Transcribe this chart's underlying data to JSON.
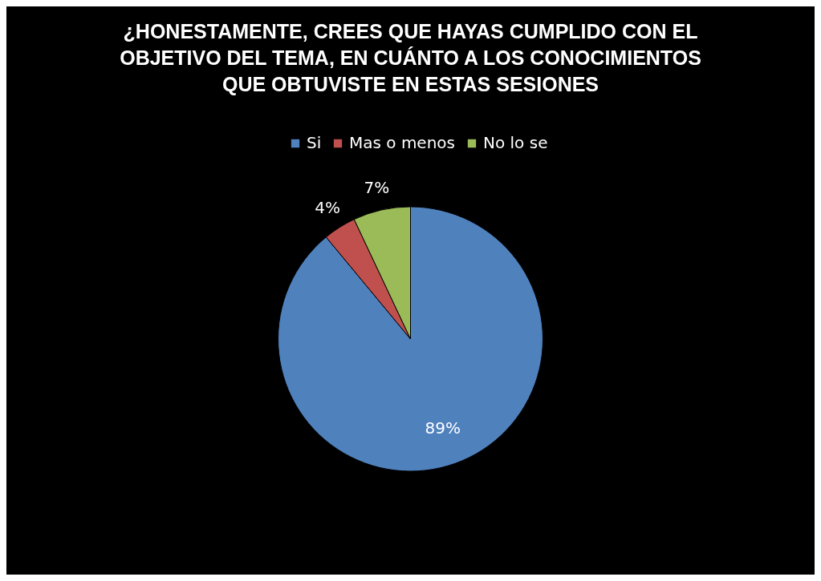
{
  "chart_data": {
    "type": "pie",
    "title": "¿HONESTAMENTE, CREES QUE HAYAS CUMPLIDO CON EL OBJETIVO DEL TEMA, EN CUÁNTO A LOS CONOCIMIENTOS QUE OBTUVISTE EN ESTAS SESIONES",
    "categories": [
      "Si",
      "Mas o menos",
      "No lo se"
    ],
    "values": [
      89,
      4,
      7
    ],
    "value_labels": [
      "89%",
      "4%",
      "7%"
    ],
    "colors": [
      "#4f81bd",
      "#c0504d",
      "#9bbb59"
    ],
    "legend": "top"
  }
}
